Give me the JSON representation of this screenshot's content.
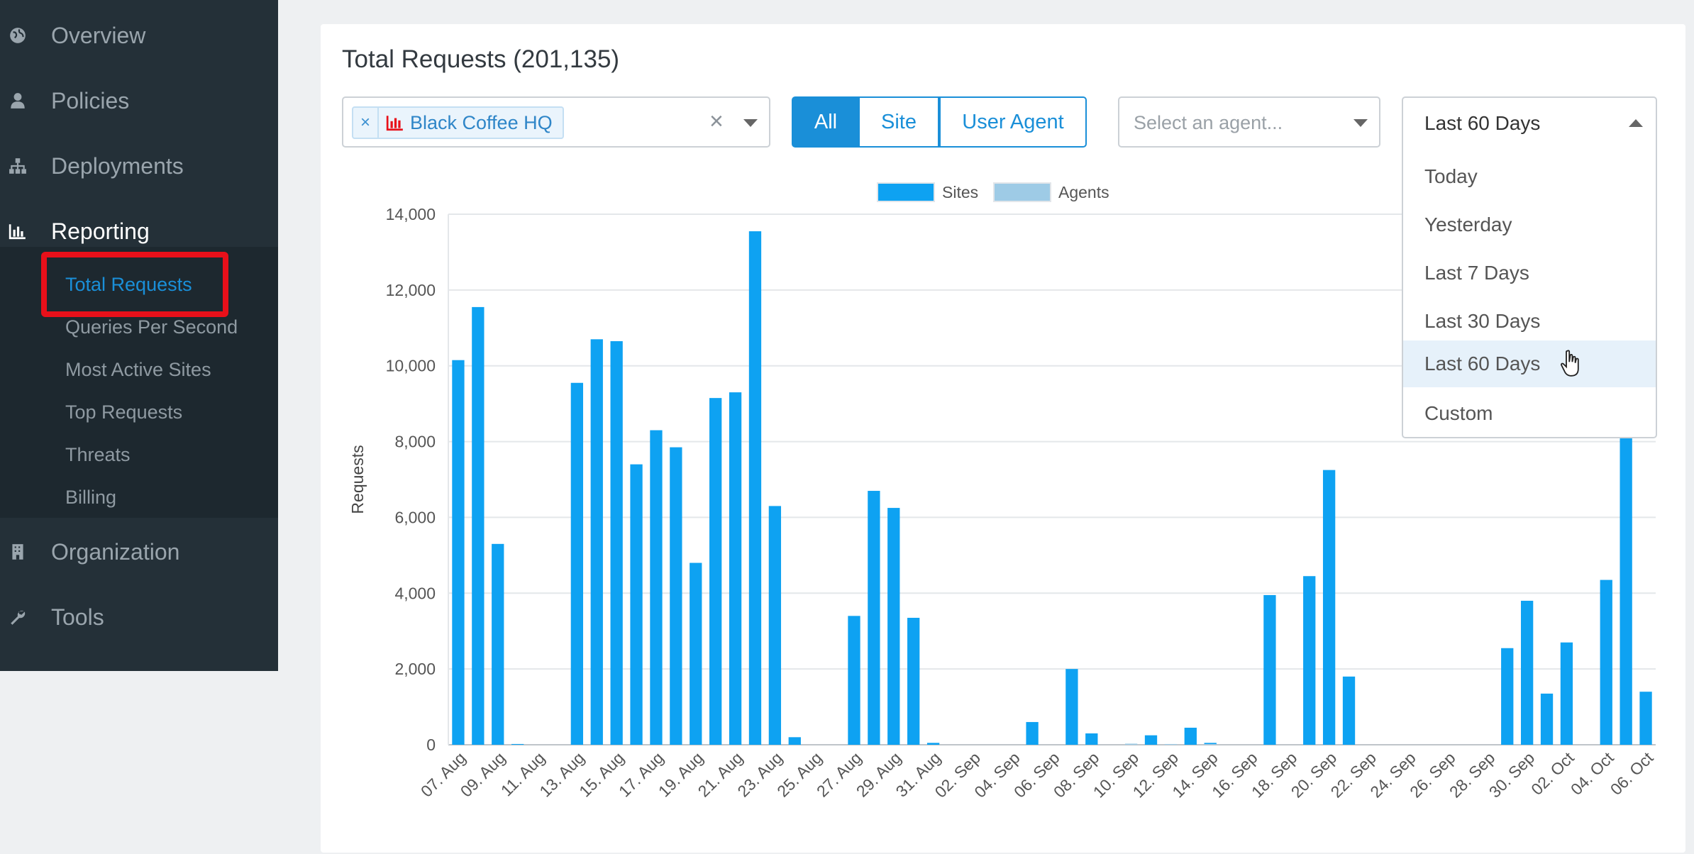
{
  "sidebar": {
    "items": [
      {
        "label": "Overview",
        "icon": "globe-icon"
      },
      {
        "label": "Policies",
        "icon": "user-icon"
      },
      {
        "label": "Deployments",
        "icon": "sitemap-icon"
      },
      {
        "label": "Reporting",
        "icon": "bar-chart-icon"
      },
      {
        "label": "Organization",
        "icon": "building-icon"
      },
      {
        "label": "Tools",
        "icon": "wrench-icon"
      }
    ],
    "reporting_sub": [
      "Total Requests",
      "Queries Per Second",
      "Most Active Sites",
      "Top Requests",
      "Threats",
      "Billing"
    ]
  },
  "main": {
    "title": "Total Requests (201,135)",
    "site_tag": "Black Coffee HQ",
    "clear_symbol": "×",
    "tag_remove_symbol": "×",
    "filter_buttons": [
      "All",
      "Site",
      "User Agent"
    ],
    "agent_placeholder": "Select an agent...",
    "range_value": "Last 60 Days",
    "range_options": [
      "Today",
      "Yesterday",
      "Last 7 Days",
      "Last 30 Days",
      "Last 60 Days",
      "Custom"
    ]
  },
  "colors": {
    "accent": "#1a8fd8",
    "sites_bar": "#0ea2f2",
    "agents_bar": "#9ecbe6",
    "sidebar_bg": "#243038",
    "highlight": "#e8101a"
  },
  "chart_data": {
    "type": "bar",
    "ylabel": "Requests",
    "ylim": [
      0,
      14000
    ],
    "yticks": [
      "0",
      "2,000",
      "4,000",
      "6,000",
      "8,000",
      "10,000",
      "12,000",
      "14,000"
    ],
    "xtick_labels": [
      "07. Aug",
      "09. Aug",
      "11. Aug",
      "13. Aug",
      "15. Aug",
      "17. Aug",
      "19. Aug",
      "21. Aug",
      "23. Aug",
      "25. Aug",
      "27. Aug",
      "29. Aug",
      "31. Aug",
      "02. Sep",
      "04. Sep",
      "06. Sep",
      "08. Sep",
      "10. Sep",
      "12. Sep",
      "14. Sep",
      "16. Sep",
      "18. Sep",
      "20. Sep",
      "22. Sep",
      "24. Sep",
      "26. Sep",
      "28. Sep",
      "30. Sep",
      "02. Oct",
      "04. Oct",
      "06. Oct"
    ],
    "legend": [
      "Sites",
      "Agents"
    ],
    "legend_position": "top-center",
    "grid": true,
    "series": [
      {
        "name": "Sites",
        "values": [
          10150,
          11550,
          5300,
          20,
          0,
          0,
          9550,
          10700,
          10650,
          7400,
          8300,
          7850,
          4800,
          9150,
          9300,
          13550,
          6300,
          200,
          0,
          0,
          3400,
          6700,
          6250,
          3350,
          50,
          0,
          0,
          0,
          0,
          600,
          0,
          2000,
          300,
          0,
          0,
          250,
          0,
          450,
          50,
          0,
          0,
          3950,
          0,
          4450,
          7250,
          1800,
          0,
          0,
          0,
          0,
          0,
          0,
          0,
          2550,
          3800,
          1350,
          2700,
          0,
          4350,
          8150,
          1400
        ]
      },
      {
        "name": "Agents",
        "values": [
          0,
          0,
          0,
          0,
          0,
          0,
          0,
          0,
          0,
          0,
          0,
          0,
          0,
          0,
          0,
          0,
          0,
          0,
          0,
          0,
          0,
          0,
          0,
          0,
          0,
          0,
          0,
          0,
          0,
          0,
          0,
          0,
          0,
          0,
          30,
          0,
          20,
          0,
          20,
          0,
          0,
          0,
          0,
          0,
          0,
          0,
          0,
          0,
          0,
          0,
          0,
          0,
          0,
          0,
          0,
          0,
          0,
          0,
          0,
          0,
          0
        ]
      }
    ]
  }
}
